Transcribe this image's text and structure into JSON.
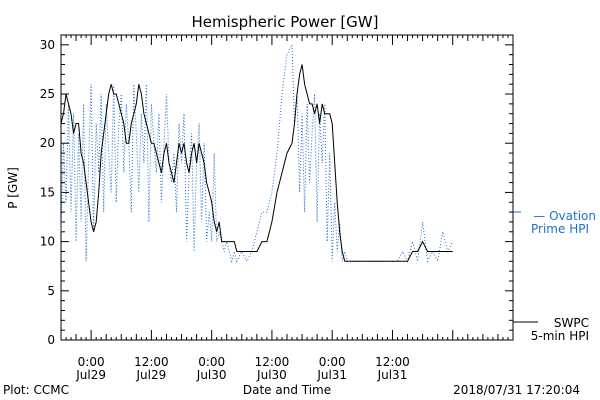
{
  "chart_data": {
    "type": "line",
    "title": "Hemispheric Power [GW]",
    "xlabel": "Date and Time",
    "ylabel": "P [GW]",
    "ylim": [
      0,
      31
    ],
    "yticks": [
      0,
      5,
      10,
      15,
      20,
      25,
      30
    ],
    "xlim_hours": [
      -6,
      84
    ],
    "x_axis_origin": "2018-07-29 00:00",
    "xticks": [
      {
        "hour": 0,
        "time": "0:00",
        "date": "Jul29"
      },
      {
        "hour": 12,
        "time": "12:00",
        "date": "Jul29"
      },
      {
        "hour": 24,
        "time": "0:00",
        "date": "Jul30"
      },
      {
        "hour": 36,
        "time": "12:00",
        "date": "Jul30"
      },
      {
        "hour": 48,
        "time": "0:00",
        "date": "Jul31"
      },
      {
        "hour": 60,
        "time": "12:00",
        "date": "Jul31"
      }
    ],
    "grid": false,
    "legend_placement": "right",
    "series": [
      {
        "name": "SWPC 5-min HPI",
        "label_lines": [
          "SWPC",
          "5-min HPI"
        ],
        "color": "#000000",
        "style": "solid",
        "x": [
          -6,
          -5.5,
          -5,
          -4.5,
          -4,
          -3.5,
          -3,
          -2.5,
          -2,
          -1.5,
          -1,
          -0.5,
          0,
          0.5,
          1,
          1.5,
          2,
          2.5,
          3,
          3.5,
          4,
          4.5,
          5,
          5.5,
          6,
          6.5,
          7,
          7.5,
          8,
          8.5,
          9,
          9.5,
          10,
          10.5,
          11,
          11.5,
          12,
          12.5,
          13,
          13.5,
          14,
          14.5,
          15,
          15.5,
          16,
          16.5,
          17,
          17.5,
          18,
          18.5,
          19,
          19.5,
          20,
          20.5,
          21,
          21.5,
          22,
          22.5,
          23,
          23.5,
          24,
          24.5,
          25,
          25.5,
          26,
          26.5,
          27,
          27.5,
          28,
          28.5,
          29,
          30,
          31,
          32,
          33,
          34,
          35,
          36,
          37,
          38,
          39,
          40,
          40.5,
          41,
          41.5,
          42,
          42.5,
          43,
          43.5,
          44,
          44.5,
          45,
          45.5,
          46,
          46.5,
          47,
          47.5,
          48,
          48.5,
          49,
          49.5,
          50,
          50.5,
          51,
          51.5,
          52,
          52.5,
          53,
          53.5,
          54,
          55,
          56,
          57,
          58,
          59,
          60,
          61,
          62,
          63,
          64,
          65,
          66,
          67,
          68,
          69,
          70,
          71,
          72
        ],
        "y": [
          22,
          23,
          25,
          24,
          23,
          21,
          22,
          22,
          19,
          18,
          16,
          14,
          12,
          11,
          12,
          15,
          19,
          21,
          23,
          25,
          26,
          25,
          25,
          24,
          23,
          22,
          20,
          20,
          22,
          23,
          24,
          26,
          25,
          23,
          22,
          21,
          20,
          20,
          19,
          18,
          17,
          19,
          20,
          18,
          17,
          16,
          18,
          20,
          19,
          20,
          18,
          17,
          19,
          20,
          18,
          20,
          19,
          18,
          16,
          15,
          14,
          12,
          11,
          12,
          10,
          10,
          10,
          10,
          10,
          10,
          9,
          9,
          9,
          9,
          9,
          10,
          10,
          12,
          15,
          17,
          19,
          20,
          22,
          25,
          27,
          28,
          26,
          25,
          24,
          24,
          23,
          24,
          22,
          24,
          23,
          23,
          23,
          22,
          18,
          14,
          11,
          9,
          8,
          8,
          8,
          8,
          8,
          8,
          8,
          8,
          8,
          8,
          8,
          8,
          8,
          8,
          8,
          8,
          8,
          9,
          9,
          10,
          9,
          9,
          9,
          9,
          9,
          9
        ]
      },
      {
        "name": "Ovation Prime HPI",
        "label_lines": [
          "— Ovation",
          "Prime HPI"
        ],
        "color": "#1f6fd1",
        "style": "dotted",
        "x": [
          -6,
          -5.5,
          -5,
          -4.5,
          -4,
          -3.5,
          -3,
          -2.5,
          -2,
          -1.5,
          -1,
          -0.5,
          0,
          0.5,
          1,
          1.5,
          2,
          2.5,
          3,
          3.5,
          4,
          4.5,
          5,
          5.5,
          6,
          6.5,
          7,
          7.5,
          8,
          8.5,
          9,
          9.5,
          10,
          10.5,
          11,
          11.5,
          12,
          12.5,
          13,
          13.5,
          14,
          14.5,
          15,
          15.5,
          16,
          16.5,
          17,
          17.5,
          18,
          18.5,
          19,
          19.5,
          20,
          20.5,
          21,
          21.5,
          22,
          22.5,
          23,
          23.5,
          24,
          24.5,
          25,
          25.5,
          26,
          26.5,
          27,
          27.5,
          28,
          28.5,
          29,
          30,
          31,
          32,
          33,
          34,
          35,
          36,
          37,
          38,
          39,
          40,
          40.5,
          41,
          41.5,
          42,
          42.5,
          43,
          43.5,
          44,
          44.5,
          45,
          45.5,
          46,
          46.5,
          47,
          47.5,
          48,
          48.5,
          49,
          49.5,
          50,
          50.5,
          51,
          51.5,
          52,
          52.5,
          53,
          53.5,
          54,
          55,
          56,
          57,
          58,
          59,
          60,
          61,
          62,
          63,
          64,
          65,
          66,
          67,
          68,
          69,
          70,
          71,
          72
        ],
        "y": [
          11,
          20,
          14,
          24,
          13,
          23,
          10,
          21,
          12,
          24,
          8,
          18,
          26,
          11,
          22,
          17,
          25,
          13,
          24,
          19,
          15,
          26,
          14,
          22,
          25,
          17,
          24,
          20,
          13,
          26,
          21,
          15,
          23,
          18,
          26,
          12,
          24,
          20,
          17,
          23,
          14,
          20,
          25,
          18,
          16,
          19,
          13,
          22,
          18,
          23,
          10,
          17,
          21,
          9,
          18,
          22,
          12,
          20,
          10,
          13,
          10,
          19,
          10,
          11,
          10,
          9,
          10,
          9,
          8,
          9,
          8,
          9,
          8,
          9,
          11,
          13,
          13,
          15,
          19,
          25,
          29,
          30,
          22,
          25,
          15,
          23,
          13,
          24,
          16,
          21,
          25,
          12,
          23,
          18,
          24,
          10,
          19,
          8,
          14,
          9,
          12,
          8,
          9,
          8,
          8,
          8,
          8,
          8,
          8,
          8,
          8,
          8,
          8,
          8,
          8,
          8,
          8,
          9,
          8,
          10,
          8,
          12,
          8,
          9,
          8,
          11,
          9,
          10
        ]
      }
    ]
  },
  "footer": {
    "left": "Plot: CCMC",
    "center": "Date and Time",
    "right": "2018/07/31 17:20:04"
  }
}
